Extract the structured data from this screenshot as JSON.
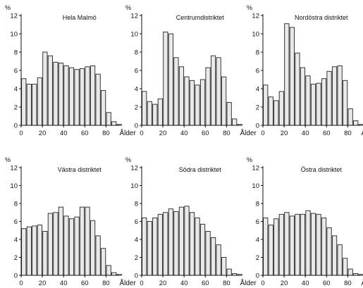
{
  "chart_data": [
    {
      "type": "bar",
      "title": "Hela Malmö",
      "ylabel": "%",
      "xlabel": "Ålder",
      "ylim": [
        0,
        12
      ],
      "yticks": [
        0,
        2,
        4,
        6,
        8,
        10,
        12
      ],
      "xticks": [
        0,
        20,
        40,
        60,
        80
      ],
      "bin_width": 5,
      "x": [
        0,
        5,
        10,
        15,
        20,
        25,
        30,
        35,
        40,
        45,
        50,
        55,
        60,
        65,
        70,
        75,
        80,
        85,
        90
      ],
      "values": [
        5.1,
        4.5,
        4.5,
        5.2,
        8.0,
        7.6,
        6.9,
        6.8,
        6.5,
        6.3,
        6.1,
        6.2,
        6.4,
        6.5,
        5.6,
        3.8,
        1.4,
        0.4,
        0.1
      ]
    },
    {
      "type": "bar",
      "title": "Centrumdistriktet",
      "ylabel": "%",
      "xlabel": "Ålder",
      "ylim": [
        0,
        12
      ],
      "yticks": [
        0,
        2,
        4,
        6,
        8,
        10,
        12
      ],
      "xticks": [
        0,
        20,
        40,
        60,
        80
      ],
      "bin_width": 5,
      "x": [
        0,
        5,
        10,
        15,
        20,
        25,
        30,
        35,
        40,
        45,
        50,
        55,
        60,
        65,
        70,
        75,
        80,
        85,
        90
      ],
      "values": [
        3.7,
        2.6,
        2.3,
        2.9,
        10.2,
        10.0,
        7.4,
        6.4,
        5.3,
        4.9,
        4.4,
        5.0,
        6.3,
        7.6,
        7.4,
        5.3,
        2.5,
        0.7,
        0.1
      ]
    },
    {
      "type": "bar",
      "title": "Nordöstra distriktet",
      "ylabel": "%",
      "xlabel": "Ålde",
      "ylim": [
        0,
        12
      ],
      "yticks": [
        0,
        2,
        4,
        6,
        8,
        10,
        12
      ],
      "xticks": [
        0,
        20,
        40,
        60,
        80
      ],
      "bin_width": 5,
      "x": [
        0,
        5,
        10,
        15,
        20,
        25,
        30,
        35,
        40,
        45,
        50,
        55,
        60,
        65,
        70,
        75,
        80,
        85,
        90
      ],
      "values": [
        4.4,
        3.1,
        2.7,
        3.7,
        11.1,
        10.7,
        7.9,
        6.3,
        5.4,
        4.5,
        4.6,
        5.1,
        5.9,
        6.4,
        6.5,
        4.9,
        1.8,
        0.5,
        0.1
      ]
    },
    {
      "type": "bar",
      "title": "Västra distriktet",
      "ylabel": "%",
      "xlabel": "Ålder",
      "ylim": [
        0,
        12
      ],
      "yticks": [
        0,
        2,
        4,
        6,
        8,
        10,
        12
      ],
      "xticks": [
        0,
        20,
        40,
        60,
        80
      ],
      "bin_width": 5,
      "x": [
        0,
        5,
        10,
        15,
        20,
        25,
        30,
        35,
        40,
        45,
        50,
        55,
        60,
        65,
        70,
        75,
        80,
        85,
        90
      ],
      "values": [
        5.2,
        5.4,
        5.5,
        5.6,
        4.9,
        6.9,
        7.0,
        7.6,
        6.6,
        6.3,
        6.5,
        7.6,
        7.6,
        6.1,
        4.4,
        3.0,
        1.1,
        0.3,
        0.1
      ]
    },
    {
      "type": "bar",
      "title": "Södra distriktet",
      "ylabel": "%",
      "xlabel": "Ålder",
      "ylim": [
        0,
        12
      ],
      "yticks": [
        0,
        2,
        4,
        6,
        8,
        10,
        12
      ],
      "xticks": [
        0,
        20,
        40,
        60,
        80
      ],
      "bin_width": 5,
      "x": [
        0,
        5,
        10,
        15,
        20,
        25,
        30,
        35,
        40,
        45,
        50,
        55,
        60,
        65,
        70,
        75,
        80,
        85,
        90
      ],
      "values": [
        6.4,
        6.0,
        6.4,
        6.8,
        7.0,
        7.4,
        7.1,
        7.6,
        7.7,
        7.0,
        6.4,
        5.7,
        4.9,
        4.2,
        3.4,
        2.0,
        0.7,
        0.2,
        0.1
      ]
    },
    {
      "type": "bar",
      "title": "Östra distriktet",
      "ylabel": "%",
      "xlabel": "Ålder",
      "ylim": [
        0,
        12
      ],
      "yticks": [
        0,
        2,
        4,
        6,
        8,
        10,
        12
      ],
      "xticks": [
        0,
        20,
        40,
        60,
        80
      ],
      "bin_width": 5,
      "x": [
        0,
        5,
        10,
        15,
        20,
        25,
        30,
        35,
        40,
        45,
        50,
        55,
        60,
        65,
        70,
        75,
        80,
        85,
        90
      ],
      "values": [
        6.4,
        5.6,
        6.3,
        6.8,
        7.0,
        6.6,
        6.8,
        6.8,
        7.2,
        6.9,
        6.8,
        6.4,
        5.3,
        4.4,
        3.4,
        1.9,
        0.7,
        0.2,
        0.1
      ]
    }
  ]
}
